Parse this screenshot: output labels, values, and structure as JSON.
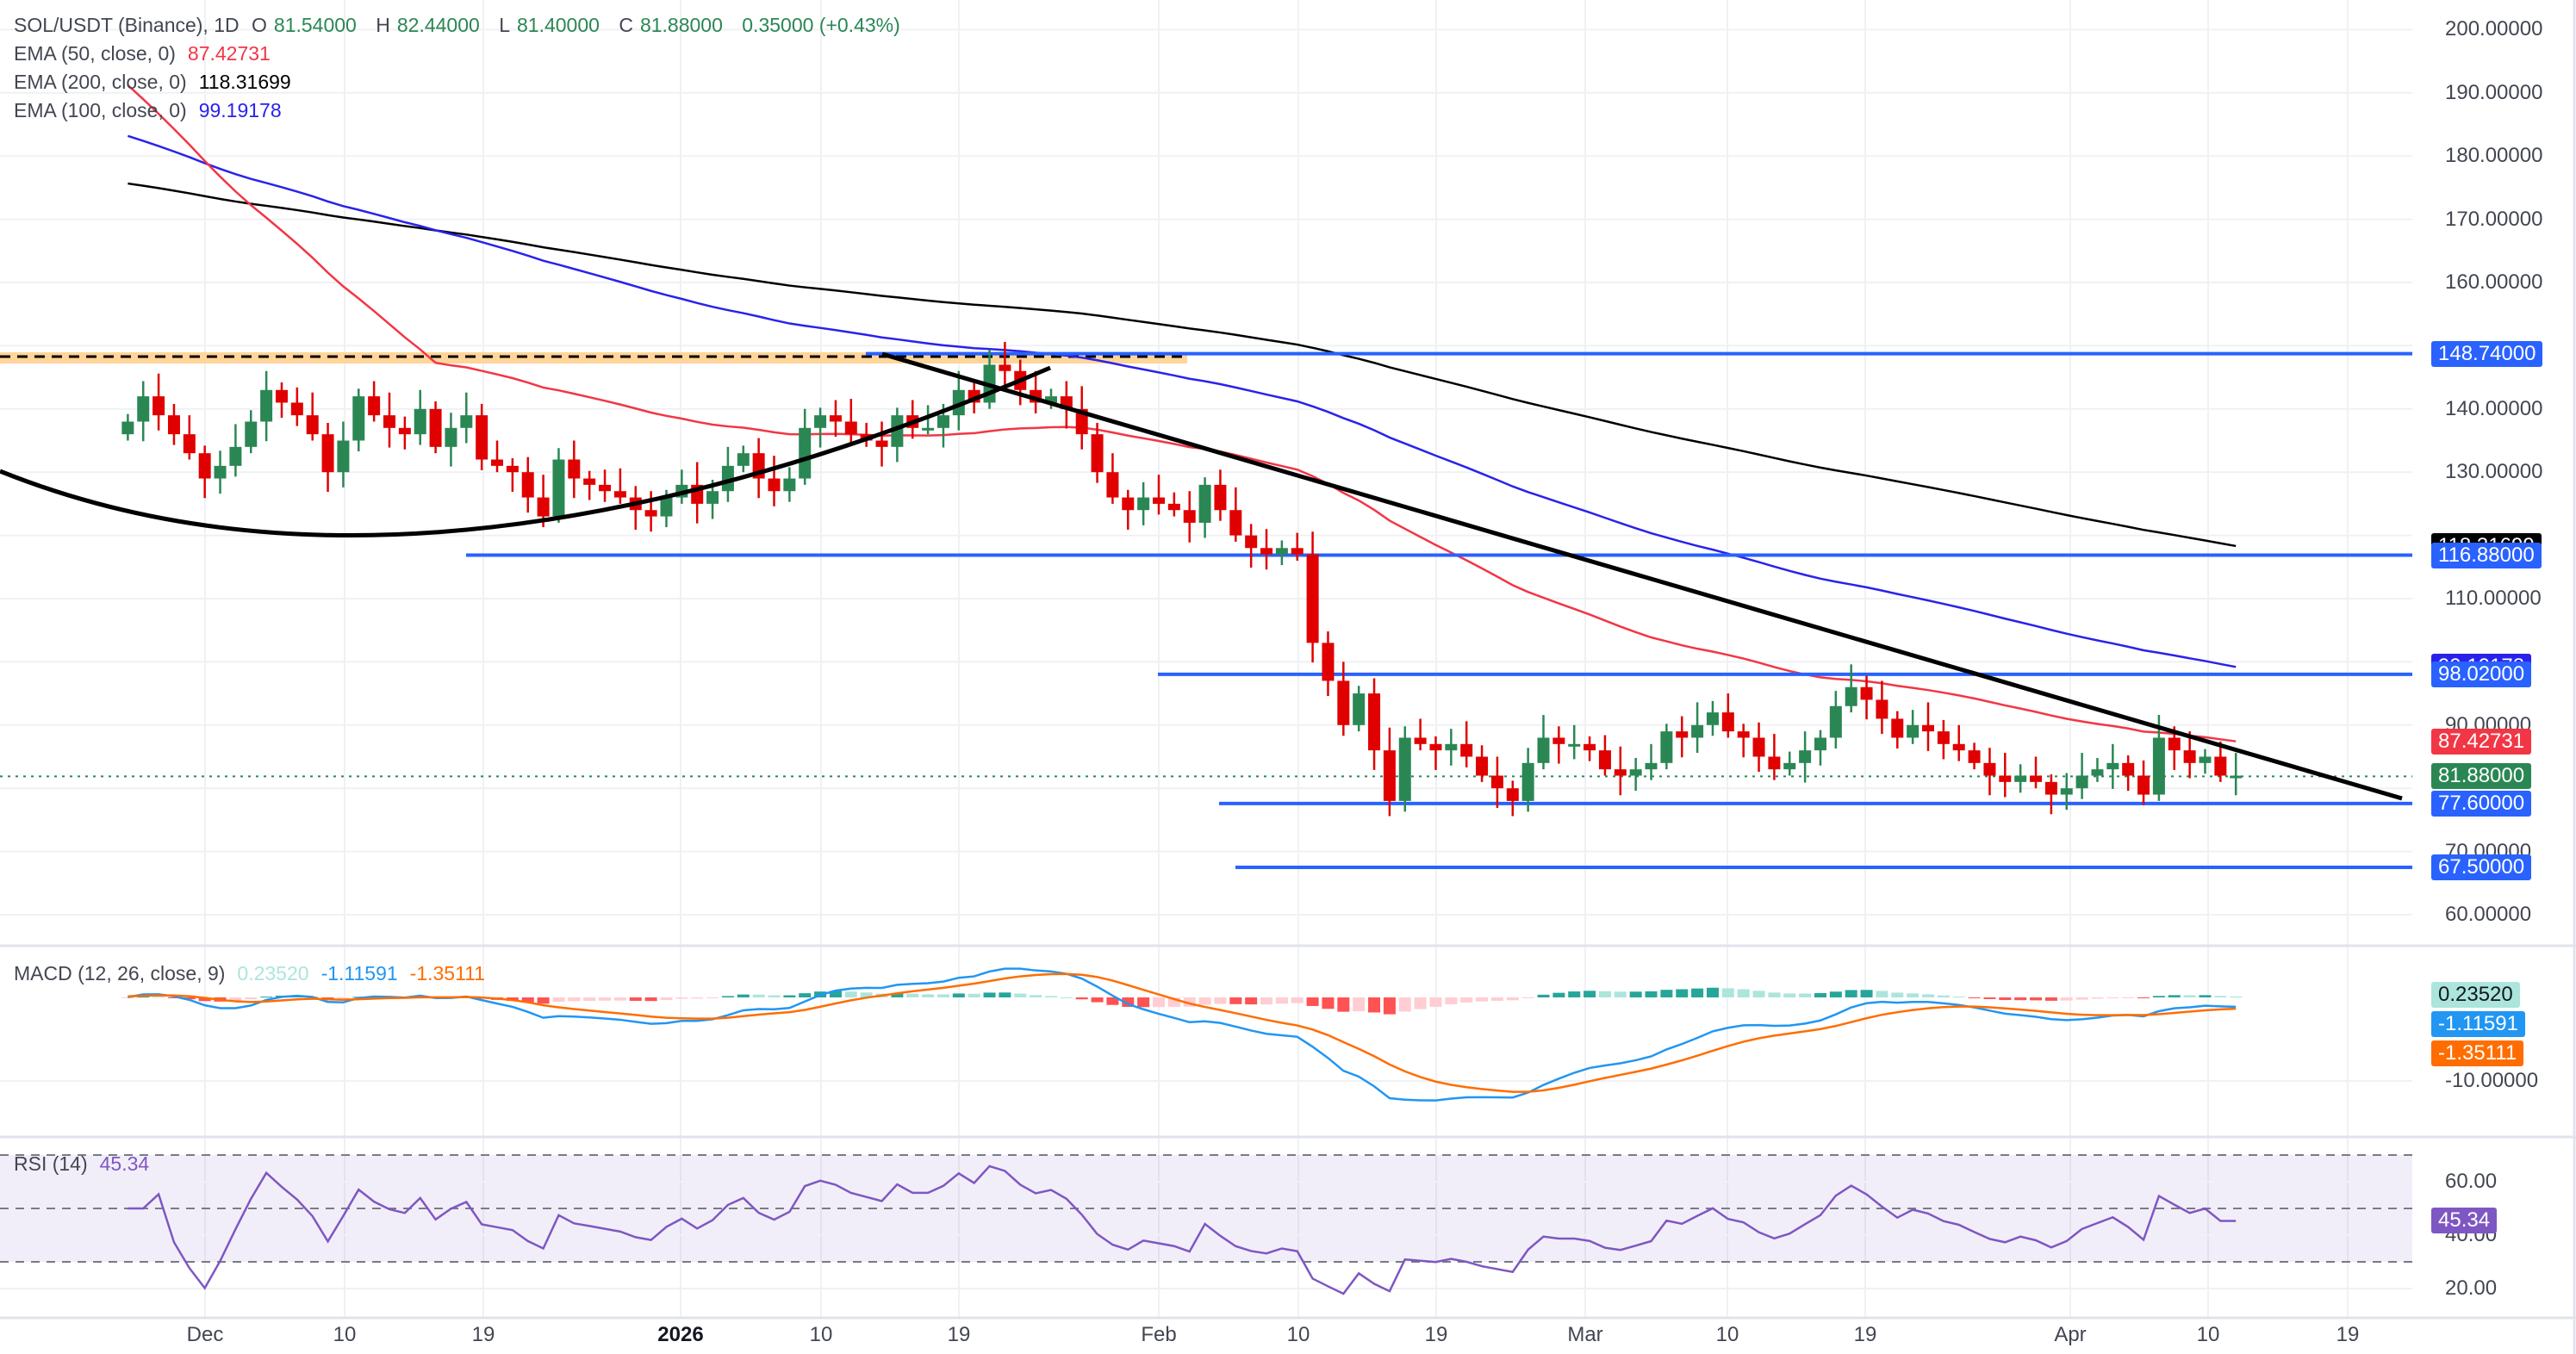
{
  "header": {
    "symbol": "SOL/USDT (Binance), 1D",
    "o_label": "O",
    "o": "81.54000",
    "h_label": "H",
    "h": "82.44000",
    "l_label": "L",
    "l": "81.40000",
    "c_label": "C",
    "c": "81.88000",
    "change": "0.35000 (+0.43%)"
  },
  "indicators": {
    "ema50": {
      "label": "EMA (50, close, 0)",
      "value": "87.42731",
      "color": "#f23645"
    },
    "ema200": {
      "label": "EMA (200, close, 0)",
      "value": "118.31699",
      "color": "#000000"
    },
    "ema100": {
      "label": "EMA (100, close, 0)",
      "value": "99.19178",
      "color": "#2a22ea"
    },
    "macd": {
      "label": "MACD (12, 26, close, 9)",
      "hist": "0.23520",
      "macd": "-1.11591",
      "signal": "-1.35111"
    },
    "rsi": {
      "label": "RSI (14)",
      "value": "45.34"
    }
  },
  "price_axis": {
    "ticks": [
      "200.00000",
      "190.00000",
      "180.00000",
      "170.00000",
      "160.00000",
      "140.00000",
      "130.00000",
      "110.00000",
      "90.00000",
      "70.00000",
      "60.00000"
    ],
    "tags": [
      {
        "text": "148.74000",
        "color": "#2962ff",
        "price": 148.74
      },
      {
        "text": "118.31699",
        "color": "#000000",
        "price": 118.31699
      },
      {
        "text": "116.88000",
        "color": "#2962ff",
        "price": 116.88
      },
      {
        "text": "99.19178",
        "color": "#2a22ea",
        "price": 99.19178
      },
      {
        "text": "98.02000",
        "color": "#2962ff",
        "price": 98.02
      },
      {
        "text": "87.42731",
        "color": "#f23645",
        "price": 87.42731
      },
      {
        "text": "81.88000",
        "color": "#2a8754",
        "price": 81.88
      },
      {
        "text": "77.60000",
        "color": "#2962ff",
        "price": 77.6
      },
      {
        "text": "67.50000",
        "color": "#2962ff",
        "price": 67.5
      }
    ]
  },
  "macd_axis": {
    "tags": [
      {
        "text": "0.23520",
        "bg": "#ace5dc",
        "fg": "#131722"
      },
      {
        "text": "-1.11591",
        "bg": "#2196f3",
        "fg": "#ffffff"
      },
      {
        "text": "-1.35111",
        "bg": "#ff6d00",
        "fg": "#ffffff"
      }
    ],
    "tick": "-10.00000"
  },
  "rsi_axis": {
    "ticks": [
      "60.00",
      "40.00",
      "20.00"
    ],
    "tag": "45.34",
    "tag_color": "#7e57c2"
  },
  "time_axis": [
    {
      "label": "Dec",
      "x": 238,
      "bold": false
    },
    {
      "label": "10",
      "x": 400,
      "bold": false
    },
    {
      "label": "19",
      "x": 561,
      "bold": false
    },
    {
      "label": "2026",
      "x": 790,
      "bold": true
    },
    {
      "label": "10",
      "x": 953,
      "bold": false
    },
    {
      "label": "19",
      "x": 1113,
      "bold": false
    },
    {
      "label": "Feb",
      "x": 1345,
      "bold": false
    },
    {
      "label": "10",
      "x": 1507,
      "bold": false
    },
    {
      "label": "19",
      "x": 1667,
      "bold": false
    },
    {
      "label": "Mar",
      "x": 1840,
      "bold": false
    },
    {
      "label": "10",
      "x": 2005,
      "bold": false
    },
    {
      "label": "19",
      "x": 2165,
      "bold": false
    },
    {
      "label": "Apr",
      "x": 2403,
      "bold": false
    },
    {
      "label": "10",
      "x": 2563,
      "bold": false
    },
    {
      "label": "19",
      "x": 2725,
      "bold": false
    }
  ],
  "chart_data": {
    "type": "candlestick",
    "title": "SOL/USDT (Binance), 1D",
    "x_range": [
      "2025-11-18",
      "2026-04-13"
    ],
    "ylim": [
      57,
      203
    ],
    "last": {
      "open": 81.54,
      "high": 82.44,
      "low": 81.4,
      "close": 81.88,
      "change": 0.35,
      "change_pct": 0.43
    },
    "horizontal_levels": [
      148.74,
      116.88,
      98.02,
      77.6,
      67.5
    ],
    "resistance_zone": {
      "price": 146.7,
      "from": "2025-11-18",
      "to": "2026-01-28"
    },
    "trendline": {
      "from": {
        "date": "2026-01-14",
        "price": 148.0
      },
      "to": {
        "date": "2026-04-23",
        "price": 77.8
      }
    },
    "rounded_bottom_arc": {
      "from": {
        "date": "2025-11-18",
        "price": 129
      },
      "bottom": {
        "date": "2025-12-14",
        "price": 116.1
      },
      "to": {
        "date": "2026-01-25",
        "price": 145.7
      }
    },
    "closes": [
      138,
      142,
      139,
      136,
      133,
      129,
      131,
      134,
      138,
      143,
      141,
      139,
      136,
      130,
      135,
      142,
      139,
      137,
      136,
      140,
      134,
      137,
      139,
      132,
      131,
      130,
      126,
      123,
      132,
      129,
      128,
      127,
      126,
      124,
      123,
      126,
      128,
      125,
      127,
      131,
      133,
      129,
      127,
      129,
      137,
      139,
      138,
      136,
      135,
      134,
      139,
      137,
      137,
      139,
      143,
      141,
      147,
      146,
      143,
      141,
      142,
      140,
      136,
      130,
      126,
      124,
      126,
      125,
      124,
      122,
      128,
      124,
      120,
      118,
      117,
      118,
      117,
      103,
      97,
      90,
      95,
      86,
      78,
      88,
      87,
      86,
      87,
      85,
      82,
      80,
      78,
      84,
      88,
      87,
      87,
      86,
      83,
      82,
      83,
      84,
      89,
      88,
      90,
      92,
      89,
      88,
      85,
      83,
      84,
      86,
      88,
      93,
      96,
      94,
      91,
      88,
      90,
      89,
      87,
      86,
      84,
      82,
      81,
      82,
      81,
      79,
      80,
      82,
      83,
      84,
      82,
      79,
      88,
      86,
      84,
      85,
      82,
      82
    ],
    "ema50_end": 87.42731,
    "ema100_end": 99.19178,
    "ema200_end": 118.31699,
    "macd": {
      "hist_last": 0.2352,
      "macd_last": -1.11591,
      "signal_last": -1.35111,
      "min": -13
    },
    "rsi": {
      "last": 45.34,
      "levels": [
        70,
        50,
        30
      ],
      "max": 68,
      "min": 20
    }
  }
}
